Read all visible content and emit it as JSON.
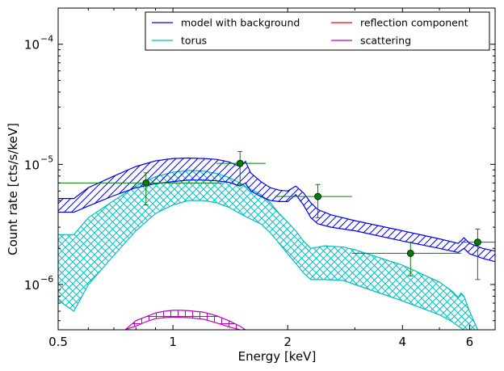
{
  "chart_data": {
    "type": "line",
    "xlabel": "Energy [keV]",
    "ylabel": "Count rate [cts/s/keV]",
    "xscale": "log",
    "yscale": "log",
    "xlim": [
      0.5,
      7.0
    ],
    "ylim": [
      4.2e-07,
      0.0002
    ],
    "grid": false,
    "legend_position": "top-right",
    "x_ticks": [
      {
        "value": 0.5,
        "label": "0.5"
      },
      {
        "value": 1,
        "label": "1"
      },
      {
        "value": 2,
        "label": "2"
      },
      {
        "value": 4,
        "label": "4"
      },
      {
        "value": 6,
        "label": "6"
      }
    ],
    "y_ticks": [
      {
        "value": 1e-06,
        "mant": "10",
        "exp": "-6"
      },
      {
        "value": 1e-05,
        "mant": "10",
        "exp": "-5"
      },
      {
        "value": 0.0001,
        "mant": "10",
        "exp": "-4"
      }
    ],
    "series": [
      {
        "name": "model with background",
        "color": "#0000ff",
        "hatch": "diagonal",
        "upper": [
          [
            0.5,
            5.2e-06
          ],
          [
            0.55,
            5.2e-06
          ],
          [
            0.6,
            6.4e-06
          ],
          [
            0.7,
            8e-06
          ],
          [
            0.8,
            9.6e-06
          ],
          [
            0.9,
            1.07e-05
          ],
          [
            1.0,
            1.12e-05
          ],
          [
            1.1,
            1.13e-05
          ],
          [
            1.2,
            1.12e-05
          ],
          [
            1.3,
            1.1e-05
          ],
          [
            1.4,
            1.05e-05
          ],
          [
            1.5,
            9.6e-06
          ],
          [
            1.55,
            1.06e-05
          ],
          [
            1.6,
            8.5e-06
          ],
          [
            1.7,
            7.2e-06
          ],
          [
            1.8,
            6.4e-06
          ],
          [
            1.9,
            6.1e-06
          ],
          [
            2.0,
            6e-06
          ],
          [
            2.1,
            6.6e-06
          ],
          [
            2.2,
            5.8e-06
          ],
          [
            2.3,
            4.8e-06
          ],
          [
            2.4,
            4.2e-06
          ],
          [
            2.6,
            3.8e-06
          ],
          [
            3.0,
            3.4e-06
          ],
          [
            4.0,
            2.8e-06
          ],
          [
            5.0,
            2.4e-06
          ],
          [
            5.6,
            2.2e-06
          ],
          [
            5.8,
            2.45e-06
          ],
          [
            6.0,
            2.2e-06
          ],
          [
            6.5,
            2e-06
          ],
          [
            7.0,
            1.9e-06
          ]
        ],
        "lower": [
          [
            0.5,
            4e-06
          ],
          [
            0.55,
            4e-06
          ],
          [
            0.6,
            4.5e-06
          ],
          [
            0.7,
            5.5e-06
          ],
          [
            0.8,
            6.4e-06
          ],
          [
            0.9,
            6.9e-06
          ],
          [
            1.0,
            7.2e-06
          ],
          [
            1.1,
            7.4e-06
          ],
          [
            1.2,
            7.4e-06
          ],
          [
            1.3,
            7.3e-06
          ],
          [
            1.4,
            7.1e-06
          ],
          [
            1.5,
            6.6e-06
          ],
          [
            1.55,
            7e-06
          ],
          [
            1.6,
            6e-06
          ],
          [
            1.7,
            5.4e-06
          ],
          [
            1.8,
            5e-06
          ],
          [
            1.9,
            4.9e-06
          ],
          [
            2.0,
            4.9e-06
          ],
          [
            2.1,
            5.6e-06
          ],
          [
            2.2,
            4.6e-06
          ],
          [
            2.3,
            3.6e-06
          ],
          [
            2.4,
            3.2e-06
          ],
          [
            2.6,
            3e-06
          ],
          [
            3.0,
            2.8e-06
          ],
          [
            4.0,
            2.3e-06
          ],
          [
            5.0,
            2e-06
          ],
          [
            5.6,
            1.85e-06
          ],
          [
            5.8,
            2e-06
          ],
          [
            6.0,
            1.8e-06
          ],
          [
            6.5,
            1.65e-06
          ],
          [
            7.0,
            1.55e-06
          ]
        ]
      },
      {
        "name": "torus",
        "color": "#00bfbf",
        "hatch": "cross",
        "upper": [
          [
            0.5,
            2.6e-06
          ],
          [
            0.55,
            2.6e-06
          ],
          [
            0.6,
            3.6e-06
          ],
          [
            0.7,
            5e-06
          ],
          [
            0.8,
            6.6e-06
          ],
          [
            0.9,
            7.9e-06
          ],
          [
            1.0,
            8.6e-06
          ],
          [
            1.1,
            8.9e-06
          ],
          [
            1.2,
            8.8e-06
          ],
          [
            1.3,
            8.4e-06
          ],
          [
            1.4,
            7.8e-06
          ],
          [
            1.5,
            7e-06
          ],
          [
            1.6,
            6.2e-06
          ],
          [
            1.7,
            5.6e-06
          ],
          [
            1.8,
            4.8e-06
          ],
          [
            1.9,
            3.9e-06
          ],
          [
            2.0,
            3.3e-06
          ],
          [
            2.1,
            2.8e-06
          ],
          [
            2.2,
            2.3e-06
          ],
          [
            2.3,
            2e-06
          ],
          [
            2.5,
            2.1e-06
          ],
          [
            2.8,
            2.05e-06
          ],
          [
            3.0,
            1.95e-06
          ],
          [
            4.0,
            1.45e-06
          ],
          [
            5.0,
            1.05e-06
          ],
          [
            5.4,
            8.8e-07
          ],
          [
            5.6,
            7.8e-07
          ],
          [
            5.7,
            8.5e-07
          ],
          [
            5.8,
            8e-07
          ],
          [
            6.0,
            6e-07
          ],
          [
            6.3,
            4.2e-07
          ]
        ],
        "lower": [
          [
            0.5,
            7.4e-07
          ],
          [
            0.55,
            6e-07
          ],
          [
            0.6,
            1e-06
          ],
          [
            0.7,
            1.75e-06
          ],
          [
            0.8,
            2.8e-06
          ],
          [
            0.9,
            3.9e-06
          ],
          [
            1.0,
            4.6e-06
          ],
          [
            1.1,
            5e-06
          ],
          [
            1.2,
            5e-06
          ],
          [
            1.3,
            4.8e-06
          ],
          [
            1.4,
            4.4e-06
          ],
          [
            1.5,
            3.9e-06
          ],
          [
            1.6,
            3.5e-06
          ],
          [
            1.7,
            3.2e-06
          ],
          [
            1.8,
            2.7e-06
          ],
          [
            1.9,
            2.2e-06
          ],
          [
            2.0,
            1.8e-06
          ],
          [
            2.1,
            1.5e-06
          ],
          [
            2.2,
            1.25e-06
          ],
          [
            2.3,
            1.1e-06
          ],
          [
            2.5,
            1.1e-06
          ],
          [
            2.8,
            1.08e-06
          ],
          [
            3.0,
            1e-06
          ],
          [
            4.0,
            7.3e-07
          ],
          [
            5.0,
            5.6e-07
          ],
          [
            5.4,
            4.9e-07
          ],
          [
            5.6,
            4.5e-07
          ],
          [
            5.8,
            4.2e-07
          ]
        ]
      },
      {
        "name": "reflection component",
        "color": "#ff0000",
        "hatch": "none",
        "upper": [],
        "lower": []
      },
      {
        "name": "scattering",
        "color": "#bf00bf",
        "hatch": "grid",
        "upper": [
          [
            0.75,
            4.2e-07
          ],
          [
            0.8,
            5e-07
          ],
          [
            0.85,
            5.4e-07
          ],
          [
            0.9,
            5.8e-07
          ],
          [
            0.95,
            6e-07
          ],
          [
            1.0,
            6.1e-07
          ],
          [
            1.05,
            6.1e-07
          ],
          [
            1.1,
            6.05e-07
          ],
          [
            1.2,
            5.9e-07
          ],
          [
            1.3,
            5.5e-07
          ],
          [
            1.4,
            5e-07
          ],
          [
            1.5,
            4.5e-07
          ],
          [
            1.55,
            4.2e-07
          ]
        ],
        "lower": [
          [
            0.75,
            4.2e-07
          ],
          [
            0.8,
            4.5e-07
          ],
          [
            0.85,
            4.9e-07
          ],
          [
            0.9,
            5.2e-07
          ],
          [
            0.95,
            5.3e-07
          ],
          [
            1.0,
            5.35e-07
          ],
          [
            1.1,
            5.3e-07
          ],
          [
            1.2,
            5.15e-07
          ],
          [
            1.3,
            4.8e-07
          ],
          [
            1.4,
            4.45e-07
          ],
          [
            1.5,
            4.2e-07
          ]
        ]
      }
    ],
    "data_points": {
      "color": "#008000",
      "marker_fill": "#008000",
      "points": [
        {
          "x": 0.85,
          "y": 7e-06,
          "xlo": 0.5,
          "xhi": 1.35,
          "ylo": 4.6e-06,
          "yhi": 8.5e-06
        },
        {
          "x": 1.5,
          "y": 1.02e-05,
          "xlo": 1.3,
          "xhi": 1.75,
          "ylo": 6.8e-06,
          "yhi": 1.28e-05
        },
        {
          "x": 2.4,
          "y": 5.4e-06,
          "xlo": 1.85,
          "xhi": 2.95,
          "ylo": 3.6e-06,
          "yhi": 6.8e-06
        },
        {
          "x": 4.2,
          "y": 1.82e-06,
          "xlo": 2.95,
          "xhi": 5.7,
          "ylo": 1.18e-06,
          "yhi": 2.25e-06
        },
        {
          "x": 6.3,
          "y": 2.25e-06,
          "xlo": 5.7,
          "xhi": 7.0,
          "ylo": 1.1e-06,
          "yhi": 2.9e-06
        }
      ]
    }
  }
}
